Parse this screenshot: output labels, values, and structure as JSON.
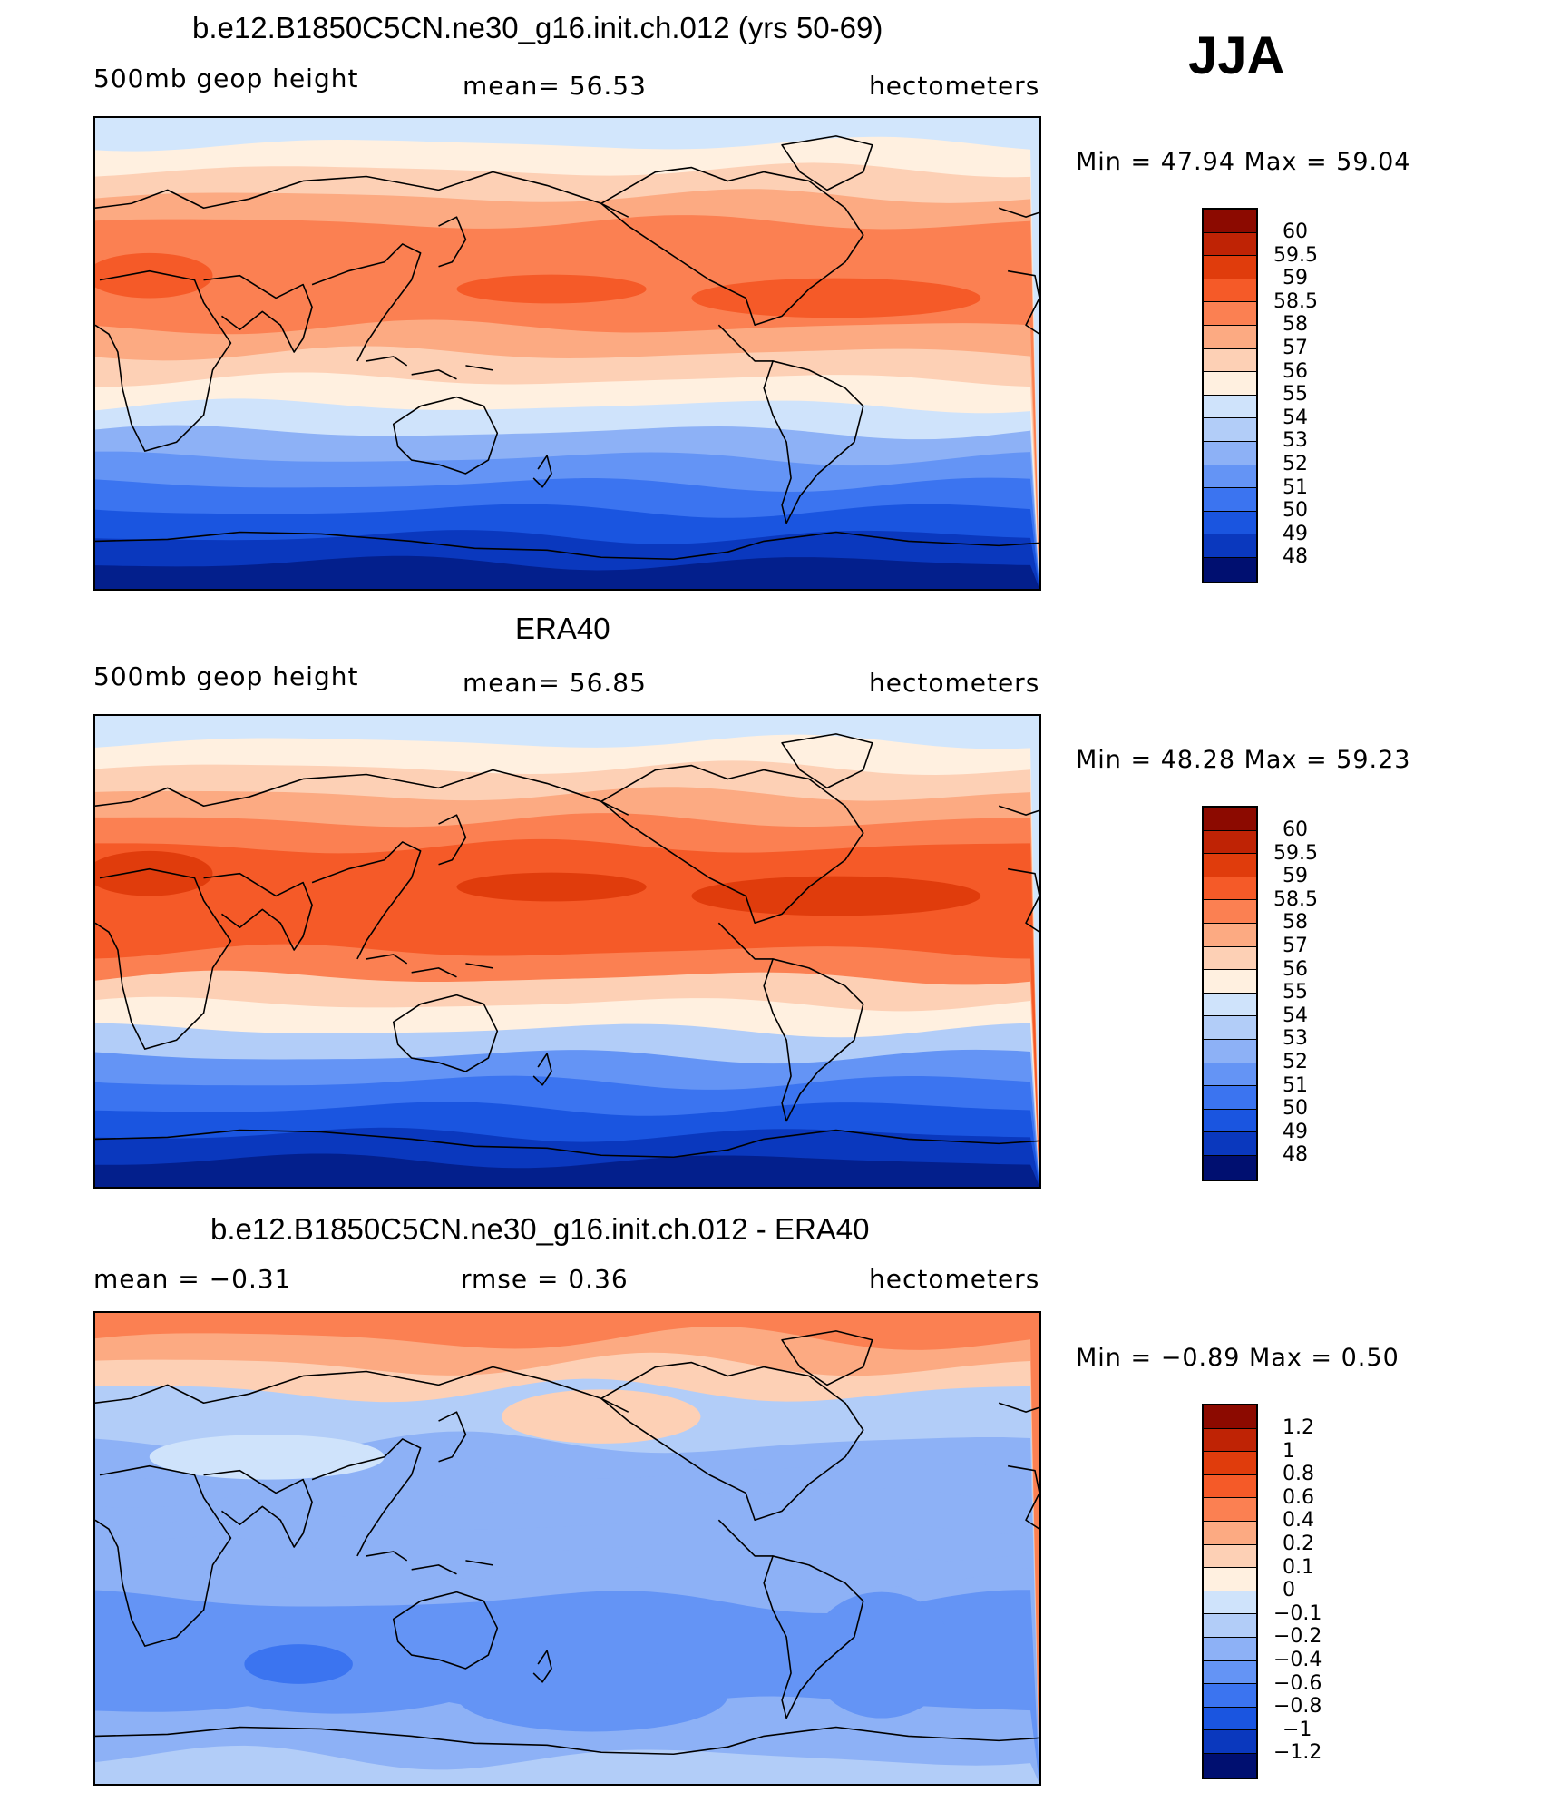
{
  "season": "JJA",
  "colors": {
    "warm": [
      "#fff0e0",
      "#fdd0b5",
      "#fcaa82",
      "#fb8052",
      "#f55a28",
      "#e03c0c",
      "#bf2305",
      "#8c0a00"
    ],
    "cool": [
      "#cfe3fb",
      "#b2cdf8",
      "#8db1f6",
      "#6494f5",
      "#3b74f0",
      "#1a55e0",
      "#0a38be",
      "#031f8c",
      "#000f70"
    ],
    "height_levels": [
      "#8c0a00",
      "#bf2305",
      "#e03c0c",
      "#f55a28",
      "#fb8052",
      "#fcaa82",
      "#fdd0b5",
      "#fff0e0",
      "#cfe3fb",
      "#b2cdf8",
      "#8db1f6",
      "#6494f5",
      "#3b74f0",
      "#1a55e0",
      "#0a38be",
      "#000f70"
    ],
    "diff_levels": [
      "#8c0a00",
      "#bf2305",
      "#e03c0c",
      "#f55a28",
      "#fb8052",
      "#fcaa82",
      "#fdd0b5",
      "#fff0e0",
      "#cfe3fb",
      "#b2cdf8",
      "#8db1f6",
      "#6494f5",
      "#3b74f0",
      "#1a55e0",
      "#0a38be",
      "#000f70"
    ]
  },
  "panels": [
    {
      "title": "b.e12.B1850C5CN.ne30_g16.init.ch.012 (yrs 50-69)",
      "left_text": "500mb  geop  height",
      "center_text": "mean=   56.53",
      "units": "hectometers",
      "minmax": "Min  =    47.94  Max  =    59.04",
      "labels": [
        "60",
        "59.5",
        "59",
        "58.5",
        "58",
        "57",
        "56",
        "55",
        "54",
        "53",
        "52",
        "51",
        "50",
        "49",
        "48"
      ],
      "type": "height",
      "bands": [
        "#d2e6fc",
        "#fff0e0",
        "#fdd0b5",
        "#fcaa82",
        "#fb8052",
        "#fb8052",
        "#fb8052",
        "#fb8052",
        "#fcaa82",
        "#fdd0b5",
        "#fff0e0",
        "#cfe3fb",
        "#8db1f6",
        "#6494f5",
        "#3b74f0",
        "#1a55e0",
        "#0a38be",
        "#031f8c"
      ]
    },
    {
      "title": "ERA40",
      "left_text": "500mb  geop  height",
      "center_text": "mean=   56.85",
      "units": "hectometers",
      "minmax": "Min  =    48.28  Max  =    59.23",
      "labels": [
        "60",
        "59.5",
        "59",
        "58.5",
        "58",
        "57",
        "56",
        "55",
        "54",
        "53",
        "52",
        "51",
        "50",
        "49",
        "48"
      ],
      "type": "height",
      "bands": [
        "#d2e6fc",
        "#fff0e0",
        "#fdd0b5",
        "#fcaa82",
        "#fb8052",
        "#f55a28",
        "#f55a28",
        "#f55a28",
        "#f55a28",
        "#fb8052",
        "#fdd0b5",
        "#fff0e0",
        "#b2cdf8",
        "#6494f5",
        "#3b74f0",
        "#1a55e0",
        "#0a38be",
        "#031f8c"
      ]
    },
    {
      "title": "b.e12.B1850C5CN.ne30_g16.init.ch.012 - ERA40",
      "left_text": "mean  =    −0.31",
      "center_text": "rmse  =     0.36",
      "units": "hectometers",
      "minmax": "Min  =    −0.89  Max  =     0.50",
      "labels": [
        "1.2",
        "1",
        "0.8",
        "0.6",
        "0.4",
        "0.2",
        "0.1",
        "0",
        "−0.1",
        "−0.2",
        "−0.4",
        "−0.6",
        "−0.8",
        "−1",
        "−1.2"
      ],
      "type": "diff",
      "bands": [
        "#fb8052",
        "#fcaa82",
        "#fdd0b5",
        "#b2cdf8",
        "#b2cdf8",
        "#8db1f6",
        "#8db1f6",
        "#8db1f6",
        "#8db1f6",
        "#8db1f6",
        "#8db1f6",
        "#6494f5",
        "#6494f5",
        "#6494f5",
        "#6494f5",
        "#8db1f6",
        "#8db1f6",
        "#b2cdf8"
      ]
    }
  ]
}
